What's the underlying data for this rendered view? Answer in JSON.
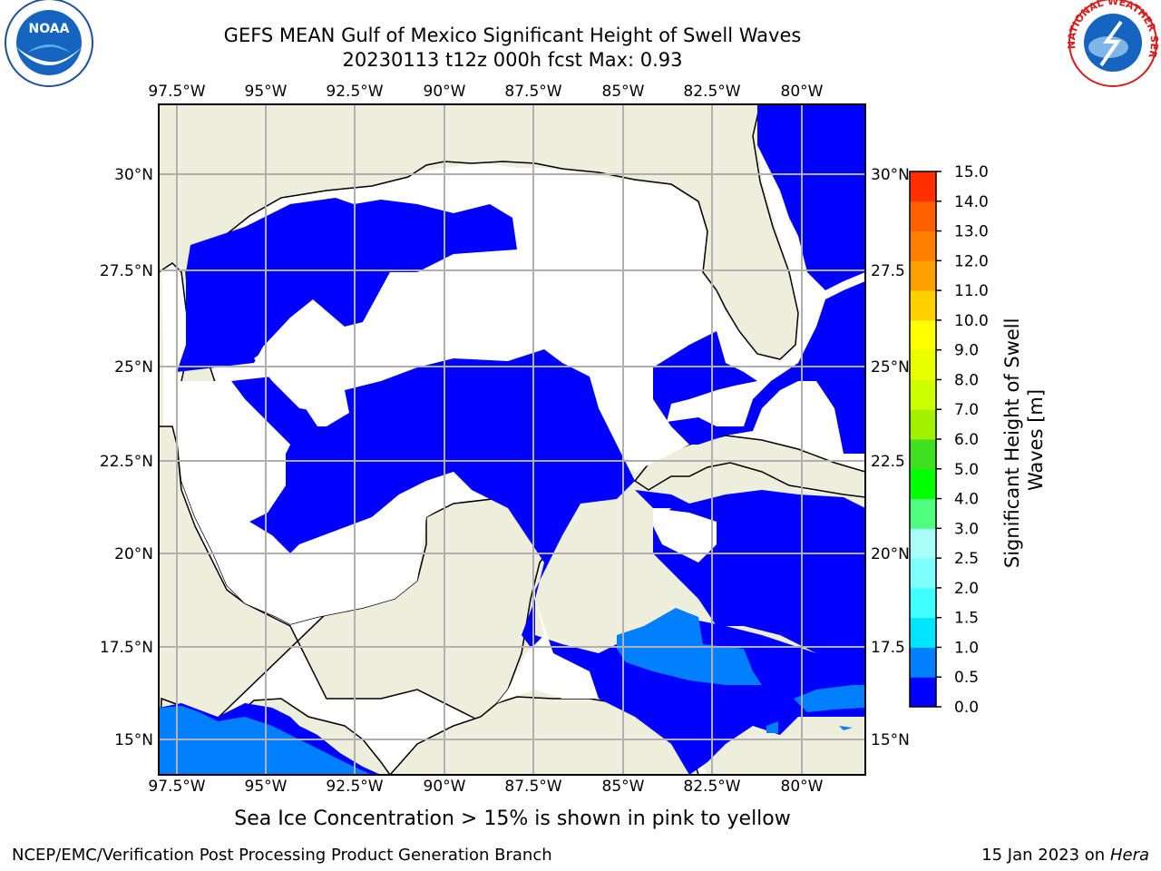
{
  "title": {
    "line1": "GEFS MEAN Gulf of Mexico Significant Height of Swell Waves",
    "line2": "20230113 t12z 000h fcst   Max: 0.93"
  },
  "map": {
    "lon_ticks": [
      "97.5°W",
      "95°W",
      "92.5°W",
      "90°W",
      "87.5°W",
      "85°W",
      "82.5°W",
      "80°W"
    ],
    "lat_ticks_left": [
      "30°N",
      "27.5°N",
      "25°N",
      "22.5°N",
      "20°N",
      "17.5°N",
      "15°N"
    ],
    "lat_ticks_right": [
      "30°N",
      "27.5",
      "25°N",
      "22.5",
      "20°N",
      "17.5",
      "15°N"
    ],
    "lon_range": [
      -98,
      -78.2
    ],
    "lat_range": [
      14,
      31.8
    ],
    "colors": {
      "land": "#eeeedc",
      "ocean_low": "#0000ff",
      "ocean_mid": "#0080ff",
      "grid": "#b0b0b0",
      "coast": "#000000"
    }
  },
  "colorbar": {
    "label": "Significant Height of Swell Waves [m]",
    "levels": [
      "0.0",
      "0.5",
      "1.0",
      "1.5",
      "2.0",
      "2.5",
      "3.0",
      "4.0",
      "5.0",
      "6.0",
      "7.0",
      "8.0",
      "9.0",
      "10.0",
      "11.0",
      "12.0",
      "13.0",
      "14.0",
      "15.0"
    ],
    "colors": [
      "#0000ff",
      "#0080ff",
      "#00e5ff",
      "#40ffff",
      "#80ffff",
      "#a8fff8",
      "#50ff80",
      "#00ff00",
      "#40e020",
      "#a0f000",
      "#ccff00",
      "#e8ff00",
      "#ffff00",
      "#ffd000",
      "#ffa000",
      "#ff8000",
      "#ff6000",
      "#ff3000",
      "#ff0000"
    ]
  },
  "annotation": "Sea Ice Concentration > 15% is shown in pink to yellow",
  "footer": {
    "left": "NCEP/EMC/Verification Post Processing Product Generation Branch",
    "right_date": "15 Jan 2023 on ",
    "right_host": "Hera"
  },
  "logos": {
    "left": "NOAA",
    "right": "NATIONAL WEATHER SERVICE"
  }
}
